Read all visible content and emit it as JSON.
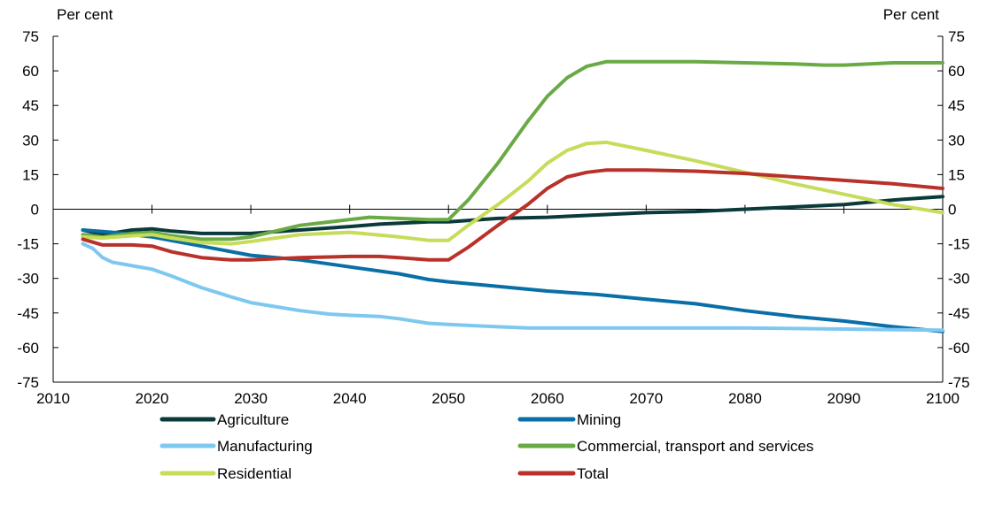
{
  "chart_data": {
    "type": "line",
    "ylabel_left": "Per cent",
    "ylabel_right": "Per cent",
    "ylim": [
      -75,
      75
    ],
    "yticks": [
      75,
      60,
      45,
      30,
      15,
      0,
      -15,
      -30,
      -45,
      -60,
      -75
    ],
    "xlim": [
      2010,
      2100
    ],
    "xticks": [
      2010,
      2020,
      2030,
      2040,
      2050,
      2060,
      2070,
      2080,
      2090,
      2100
    ],
    "grid": false,
    "legend_position": "bottom",
    "series": [
      {
        "name": "Agriculture",
        "color": "#0b3a3a",
        "x": [
          2013,
          2015,
          2018,
          2020,
          2022,
          2025,
          2030,
          2035,
          2040,
          2043,
          2048,
          2050,
          2055,
          2060,
          2065,
          2070,
          2075,
          2080,
          2085,
          2090,
          2095,
          2100
        ],
        "values": [
          -9,
          -11,
          -9,
          -8.5,
          -9.5,
          -10.5,
          -10.5,
          -9,
          -7.5,
          -6.5,
          -5.5,
          -5.5,
          -4,
          -3.5,
          -2.5,
          -1.5,
          -1,
          0,
          1,
          2,
          4,
          5.5
        ]
      },
      {
        "name": "Mining",
        "color": "#0a6fa6",
        "x": [
          2013,
          2016,
          2020,
          2025,
          2030,
          2035,
          2040,
          2045,
          2048,
          2050,
          2055,
          2060,
          2065,
          2070,
          2075,
          2080,
          2085,
          2090,
          2095,
          2100
        ],
        "values": [
          -9,
          -10,
          -12,
          -16,
          -20,
          -22,
          -25,
          -28,
          -30.5,
          -31.5,
          -33.5,
          -35.5,
          -37,
          -39,
          -41,
          -44,
          -46.5,
          -48.5,
          -51,
          -53
        ]
      },
      {
        "name": "Manufacturing",
        "color": "#7ec8f0",
        "x": [
          2013,
          2014,
          2015,
          2016,
          2018,
          2020,
          2022,
          2025,
          2028,
          2030,
          2035,
          2038,
          2040,
          2043,
          2045,
          2048,
          2050,
          2055,
          2058,
          2060,
          2070,
          2080,
          2090,
          2100
        ],
        "values": [
          -15,
          -17,
          -21,
          -23,
          -24.5,
          -26,
          -29,
          -34,
          -38,
          -40.5,
          -44,
          -45.5,
          -46,
          -46.5,
          -47.5,
          -49.5,
          -50,
          -51,
          -51.5,
          -51.5,
          -51.5,
          -51.5,
          -52,
          -52.5
        ]
      },
      {
        "name": "Commercial, transport and services",
        "color": "#6aaa45",
        "x": [
          2013,
          2015,
          2018,
          2020,
          2022,
          2025,
          2028,
          2030,
          2035,
          2040,
          2042,
          2045,
          2048,
          2050,
          2052,
          2055,
          2058,
          2060,
          2062,
          2064,
          2066,
          2070,
          2075,
          2080,
          2085,
          2088,
          2090,
          2095,
          2100
        ],
        "values": [
          -11,
          -12,
          -10.5,
          -10,
          -11.5,
          -13,
          -13,
          -12,
          -7,
          -4.5,
          -3.5,
          -4,
          -4.5,
          -4.5,
          4,
          20,
          38,
          49,
          57,
          62,
          64,
          64,
          64,
          63.5,
          63,
          62.5,
          62.5,
          63.5,
          63.5
        ]
      },
      {
        "name": "Residential",
        "color": "#c6dc5a",
        "x": [
          2013,
          2015,
          2018,
          2020,
          2022,
          2025,
          2028,
          2030,
          2035,
          2040,
          2045,
          2048,
          2050,
          2052,
          2055,
          2058,
          2060,
          2062,
          2064,
          2066,
          2070,
          2075,
          2080,
          2085,
          2090,
          2095,
          2100
        ],
        "values": [
          -12,
          -12.5,
          -11.5,
          -11,
          -12.5,
          -14.5,
          -15,
          -14,
          -11,
          -10,
          -12,
          -13.5,
          -13.5,
          -7,
          2,
          12,
          20,
          25.5,
          28.5,
          29,
          25.5,
          21,
          16,
          11,
          6.5,
          2,
          -1.5
        ]
      },
      {
        "name": "Total",
        "color": "#b8322a",
        "x": [
          2013,
          2015,
          2018,
          2020,
          2022,
          2025,
          2028,
          2030,
          2035,
          2040,
          2043,
          2045,
          2048,
          2050,
          2052,
          2055,
          2058,
          2060,
          2062,
          2064,
          2066,
          2070,
          2075,
          2080,
          2085,
          2090,
          2095,
          2100
        ],
        "values": [
          -13,
          -15.5,
          -15.5,
          -16,
          -18.5,
          -21,
          -22,
          -22,
          -21,
          -20.5,
          -20.5,
          -21,
          -22,
          -22,
          -16.5,
          -7,
          2,
          9,
          14,
          16,
          17,
          17,
          16.5,
          15.5,
          14,
          12.5,
          11,
          9
        ]
      }
    ]
  }
}
